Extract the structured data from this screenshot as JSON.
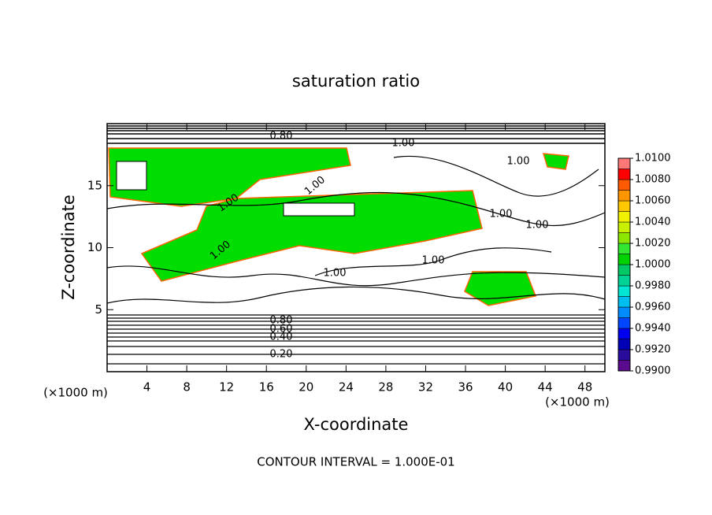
{
  "chart_data": {
    "type": "contour",
    "title": "saturation ratio",
    "xlabel": "X-coordinate",
    "ylabel": "Z-coordinate",
    "x_unit": "(×1000 m)",
    "y_unit": "(×1000 m)",
    "footer": "CONTOUR INTERVAL = 1.000E-01",
    "xlim": [
      0,
      50
    ],
    "ylim": [
      0,
      20
    ],
    "xticks": [
      4,
      8,
      12,
      16,
      20,
      24,
      28,
      32,
      36,
      40,
      44,
      48
    ],
    "yticks": [
      5,
      10,
      15
    ],
    "contour_labels": [
      "0.80",
      "1.00",
      "1.00",
      "1.00",
      "1.00",
      "1.00",
      "1.00",
      "1.00",
      "1.00",
      "1.00",
      "0.80",
      "0.60",
      "0.40",
      "0.20"
    ],
    "fill_color": "#00dd00",
    "colorbar": {
      "lim": [
        0.99,
        1.01
      ],
      "colors": [
        "#5a0a8c",
        "#2a0c9c",
        "#0000b4",
        "#0000f0",
        "#0046ff",
        "#008cff",
        "#00bef0",
        "#00e6d2",
        "#00d296",
        "#00c864",
        "#00d200",
        "#32e632",
        "#8ce600",
        "#c8f000",
        "#f0f000",
        "#ffc800",
        "#ff9600",
        "#ff5a00",
        "#ff0000",
        "#ff7878"
      ],
      "ticks": [
        {
          "value": 1.01,
          "label": "1.0100"
        },
        {
          "value": 1.008,
          "label": "1.0080"
        },
        {
          "value": 1.006,
          "label": "1.0060"
        },
        {
          "value": 1.004,
          "label": "1.0040"
        },
        {
          "value": 1.002,
          "label": "1.0020"
        },
        {
          "value": 1.0,
          "label": "1.0000"
        },
        {
          "value": 0.998,
          "label": "0.9980"
        },
        {
          "value": 0.996,
          "label": "0.9960"
        },
        {
          "value": 0.994,
          "label": "0.9940"
        },
        {
          "value": 0.992,
          "label": "0.9920"
        },
        {
          "value": 0.99,
          "label": "0.9900"
        }
      ]
    }
  }
}
